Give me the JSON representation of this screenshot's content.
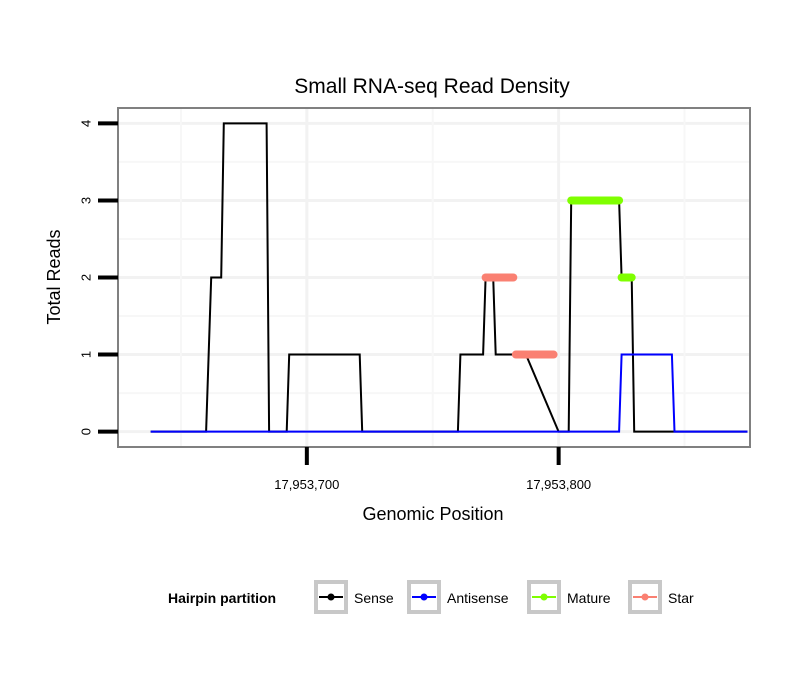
{
  "chart_data": {
    "type": "line",
    "title": "Small RNA-seq Read Density",
    "xlabel": "Genomic Position",
    "ylabel": "Total Reads",
    "xlim": [
      17953625,
      17953876
    ],
    "ylim": [
      -0.2,
      4.2
    ],
    "x_ticks": [
      17953700,
      17953800
    ],
    "x_tick_labels": [
      "17,953,700",
      "17,953,800"
    ],
    "y_ticks": [
      0,
      1,
      2,
      3,
      4
    ],
    "y_tick_labels": [
      "0",
      "1",
      "2",
      "3",
      "4"
    ],
    "grid": true,
    "legend": {
      "title": "Hairpin partition",
      "position": "bottom",
      "entries": [
        "Sense",
        "Antisense",
        "Mature",
        "Star"
      ]
    },
    "series": [
      {
        "name": "Sense",
        "color": "#000000",
        "style": "line",
        "x": [
          17953638,
          17953660,
          17953662,
          17953666,
          17953667,
          17953684,
          17953685,
          17953692,
          17953693,
          17953721,
          17953722,
          17953760,
          17953761,
          17953770,
          17953771,
          17953774,
          17953775,
          17953786,
          17953787,
          17953800,
          17953801,
          17953804,
          17953805,
          17953824,
          17953825,
          17953829,
          17953830,
          17953875
        ],
        "values": [
          0,
          0,
          2,
          2,
          4,
          4,
          0,
          0,
          1,
          1,
          0,
          0,
          1,
          1,
          2,
          2,
          1,
          1,
          1,
          0,
          0,
          0,
          3,
          3,
          2,
          2,
          0,
          0
        ]
      },
      {
        "name": "Antisense",
        "color": "#0000ff",
        "style": "line",
        "x": [
          17953638,
          17953824,
          17953825,
          17953845,
          17953846,
          17953875
        ],
        "values": [
          0,
          0,
          1,
          1,
          0,
          0
        ]
      },
      {
        "name": "Mature",
        "color": "#7fff00",
        "style": "thick",
        "segments": [
          {
            "x": [
              17953805,
              17953824
            ],
            "y": 3
          },
          {
            "x": [
              17953825,
              17953829
            ],
            "y": 2
          }
        ]
      },
      {
        "name": "Star",
        "color": "#fa8072",
        "style": "thick",
        "segments": [
          {
            "x": [
              17953771,
              17953782
            ],
            "y": 2
          },
          {
            "x": [
              17953783,
              17953798
            ],
            "y": 1
          }
        ]
      }
    ]
  }
}
